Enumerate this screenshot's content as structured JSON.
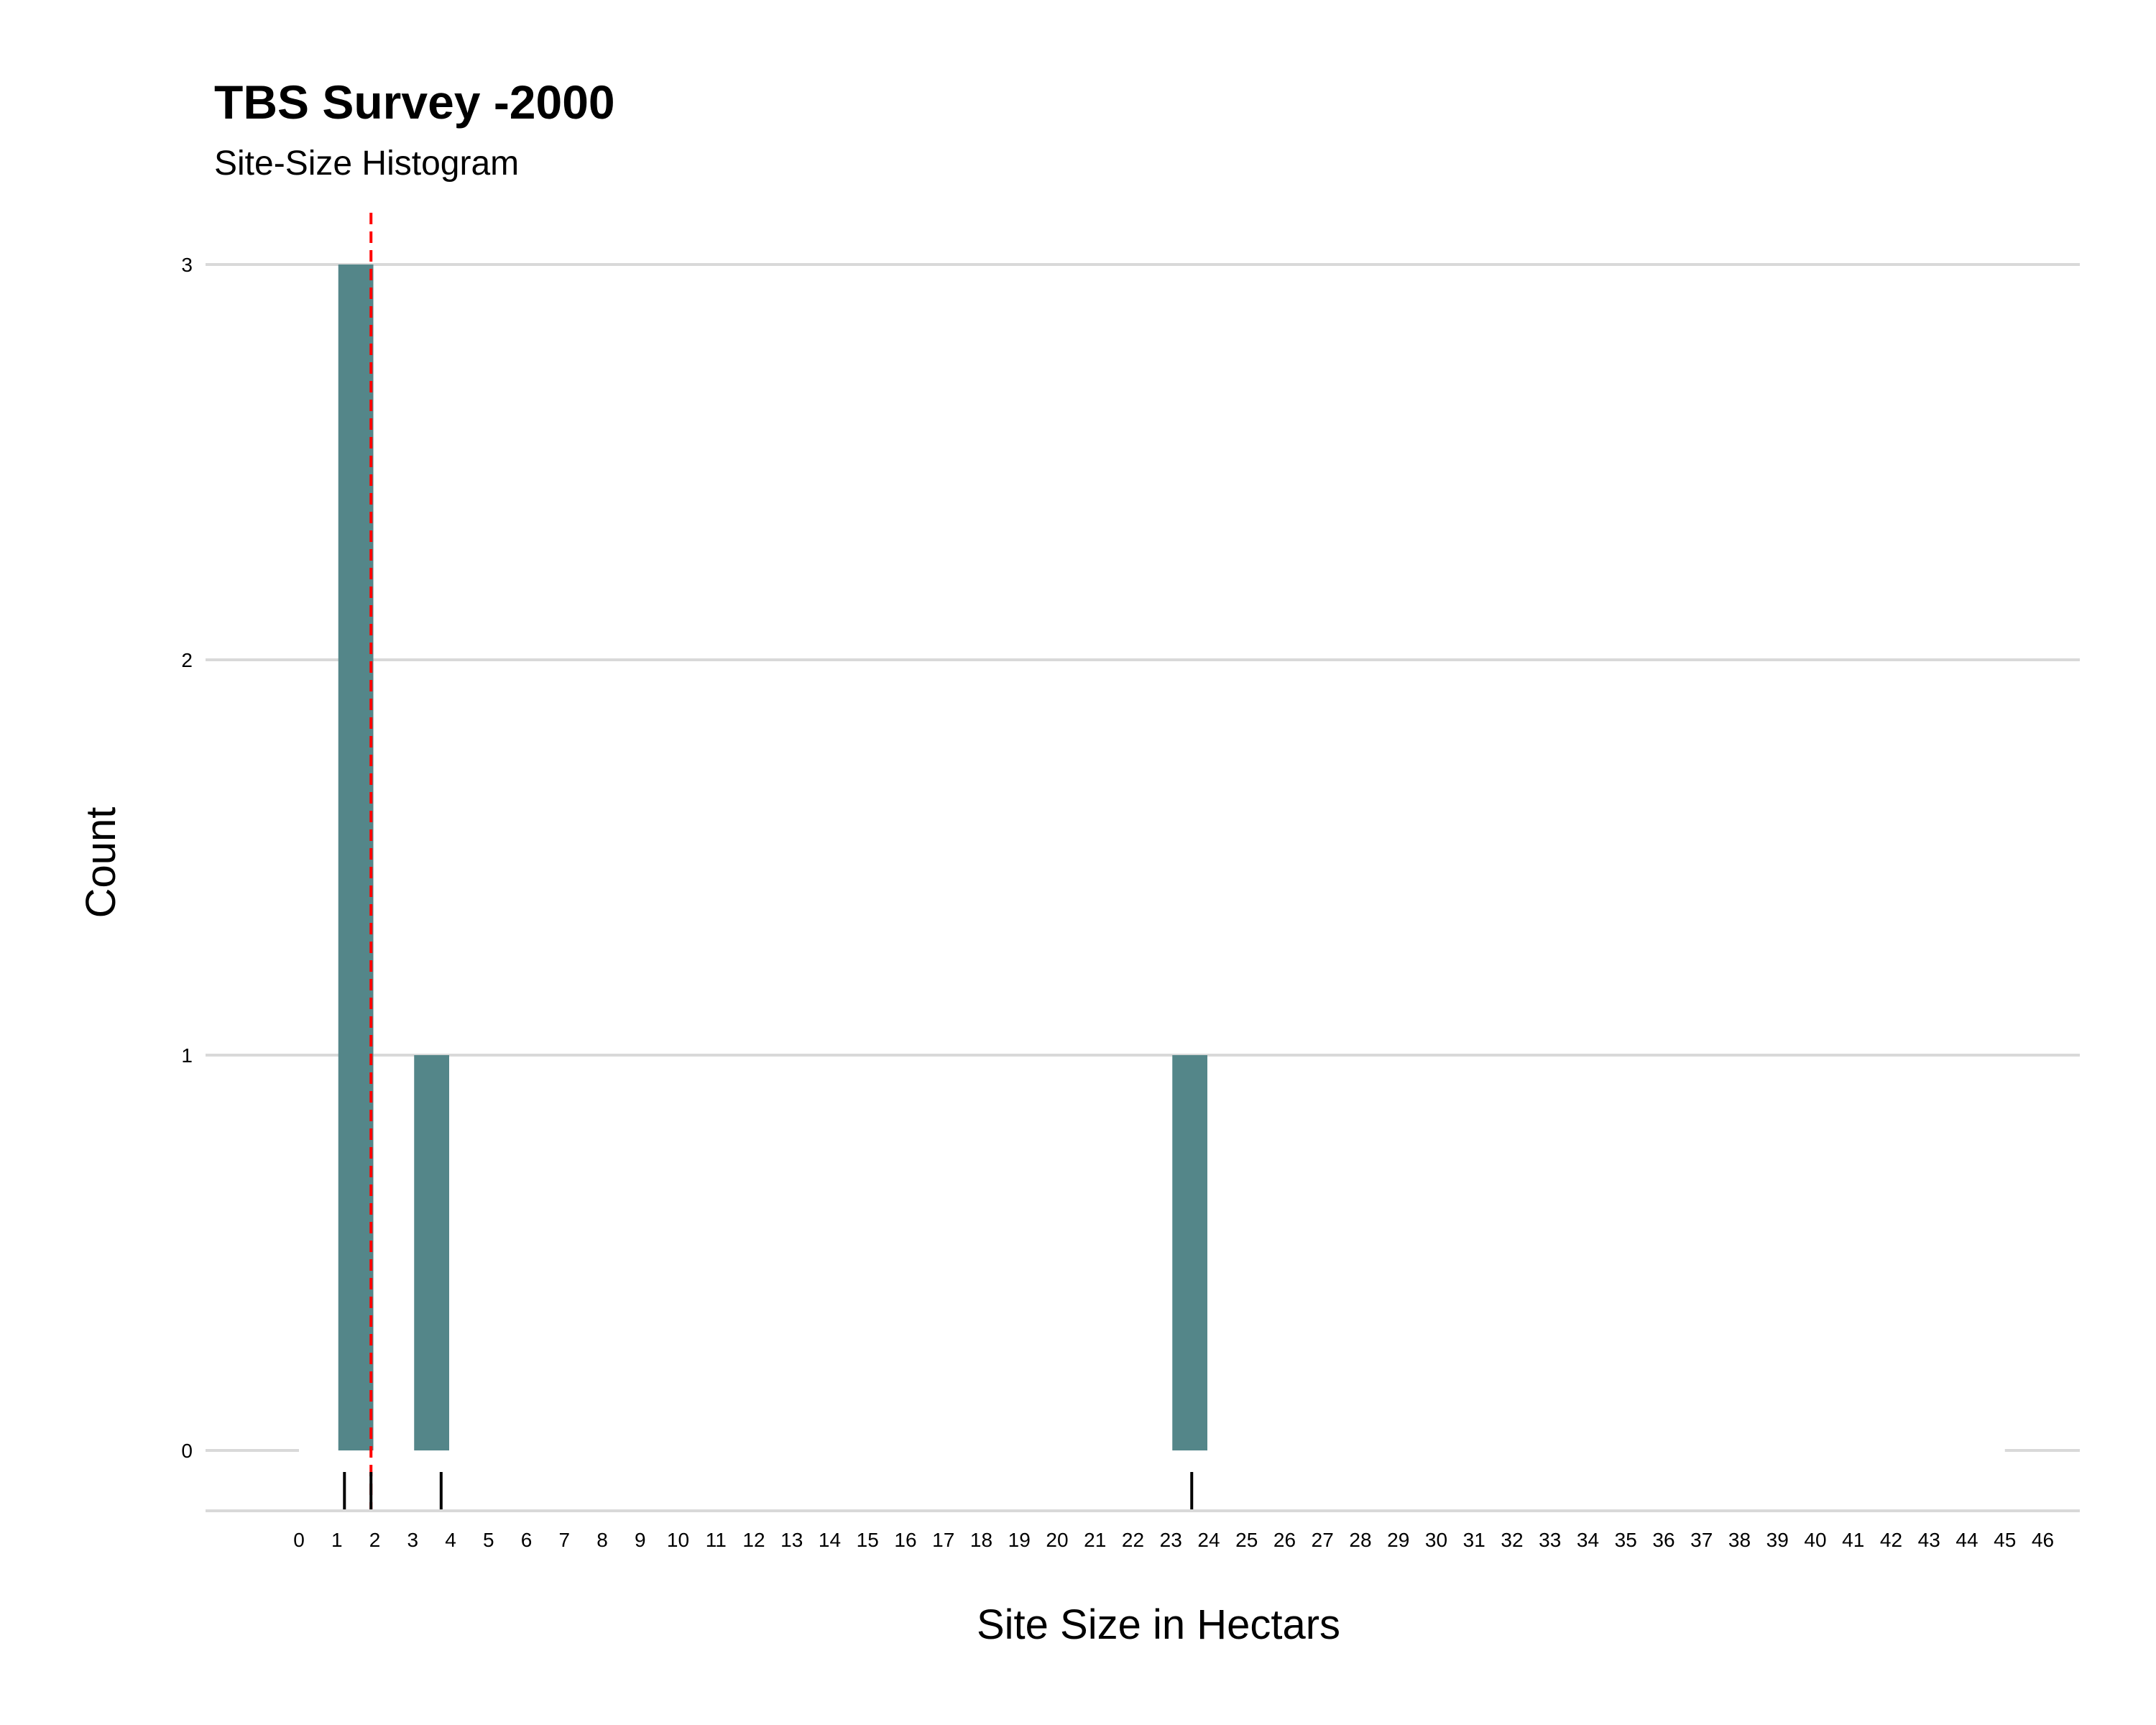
{
  "chart_data": {
    "type": "bar",
    "title": "TBS Survey -2000",
    "subtitle": "Site-Size Histogram",
    "xlabel": "Site Size in Hectars",
    "ylabel": "Count",
    "x_ticks": [
      "0",
      "1",
      "2",
      "3",
      "4",
      "5",
      "6",
      "7",
      "8",
      "9",
      "10",
      "11",
      "12",
      "13",
      "14",
      "15",
      "16",
      "17",
      "18",
      "19",
      "20",
      "21",
      "22",
      "23",
      "24",
      "25",
      "26",
      "27",
      "28",
      "29",
      "30",
      "31",
      "32",
      "33",
      "34",
      "35",
      "36",
      "37",
      "38",
      "39",
      "40",
      "41",
      "42",
      "43",
      "44",
      "45",
      "46"
    ],
    "y_ticks": [
      "0",
      "1",
      "2",
      "3"
    ],
    "xlim": [
      0,
      46
    ],
    "ylim": [
      0,
      3
    ],
    "bins": [
      {
        "start": 1,
        "end": 2,
        "count": 3
      },
      {
        "start": 3,
        "end": 4,
        "count": 1
      },
      {
        "start": 23,
        "end": 24,
        "count": 1
      }
    ],
    "rug_values": [
      1.2,
      1.9,
      3.75,
      23.55
    ],
    "reference_line": {
      "x": 1.9,
      "style": "dashed",
      "color": "#ff0000"
    },
    "grid": "horizontal",
    "colors": {
      "bar": "#548689",
      "grid": "#d9d9d9",
      "rug": "#000000"
    }
  }
}
